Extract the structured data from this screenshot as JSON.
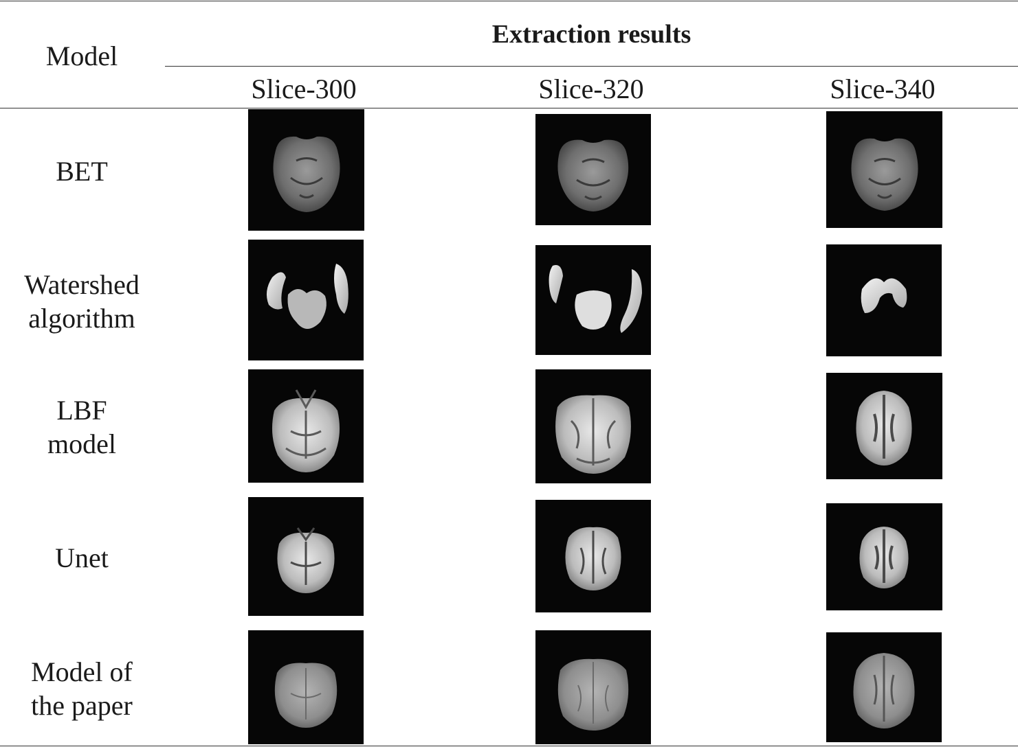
{
  "header": {
    "model_col": "Model",
    "group_title": "Extraction results",
    "slices": [
      "Slice-300",
      "Slice-320",
      "Slice-340"
    ]
  },
  "rows": [
    {
      "label_lines": [
        "BET"
      ],
      "style": "bet"
    },
    {
      "label_lines": [
        "Watershed",
        "algorithm"
      ],
      "style": "watershed"
    },
    {
      "label_lines": [
        "LBF",
        "model"
      ],
      "style": "lbf"
    },
    {
      "label_lines": [
        "Unet"
      ],
      "style": "unet"
    },
    {
      "label_lines": [
        "Model of",
        "the paper"
      ],
      "style": "ours"
    }
  ],
  "colors": {
    "image_background": "#060606",
    "rule": "#333333"
  }
}
